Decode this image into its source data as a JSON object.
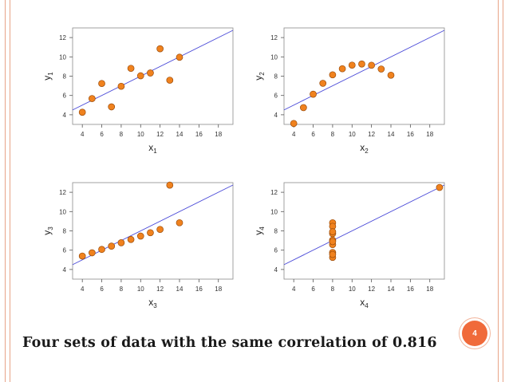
{
  "slide": {
    "caption": "Four sets of data with the same correlation of 0.816",
    "page_number": "4"
  },
  "colors": {
    "frame": "#e8a488",
    "accent": "#f06a3a",
    "point_fill": "#f0821e",
    "point_stroke": "#9a4c0c",
    "fit_line": "#4a4ad8",
    "axis": "#555555"
  },
  "chart_data": [
    {
      "type": "scatter",
      "xlabel_main": "x",
      "xlabel_sub": "1",
      "ylabel_main": "y",
      "ylabel_sub": "1",
      "xticks": [
        "4",
        "6",
        "8",
        "10",
        "12",
        "14",
        "16",
        "18"
      ],
      "yticks": [
        "4",
        "6",
        "8",
        "10",
        "12"
      ],
      "xlim": [
        3,
        19.5
      ],
      "ylim": [
        3,
        13
      ],
      "fit_line": {
        "intercept": 3,
        "slope": 0.5
      },
      "points": [
        [
          10,
          8.04
        ],
        [
          8,
          6.95
        ],
        [
          13,
          7.58
        ],
        [
          9,
          8.81
        ],
        [
          11,
          8.33
        ],
        [
          14,
          9.96
        ],
        [
          6,
          7.24
        ],
        [
          4,
          4.26
        ],
        [
          12,
          10.84
        ],
        [
          7,
          4.82
        ],
        [
          5,
          5.68
        ]
      ]
    },
    {
      "type": "scatter",
      "xlabel_main": "x",
      "xlabel_sub": "2",
      "ylabel_main": "y",
      "ylabel_sub": "2",
      "xticks": [
        "4",
        "6",
        "8",
        "10",
        "12",
        "14",
        "16",
        "18"
      ],
      "yticks": [
        "4",
        "6",
        "8",
        "10",
        "12"
      ],
      "xlim": [
        3,
        19.5
      ],
      "ylim": [
        3,
        13
      ],
      "fit_line": {
        "intercept": 3,
        "slope": 0.5
      },
      "points": [
        [
          10,
          9.14
        ],
        [
          8,
          8.14
        ],
        [
          13,
          8.74
        ],
        [
          9,
          8.77
        ],
        [
          11,
          9.26
        ],
        [
          14,
          8.1
        ],
        [
          6,
          6.13
        ],
        [
          4,
          3.1
        ],
        [
          12,
          9.13
        ],
        [
          7,
          7.26
        ],
        [
          5,
          4.74
        ]
      ]
    },
    {
      "type": "scatter",
      "xlabel_main": "x",
      "xlabel_sub": "3",
      "ylabel_main": "y",
      "ylabel_sub": "3",
      "xticks": [
        "4",
        "6",
        "8",
        "10",
        "12",
        "14",
        "16",
        "18"
      ],
      "yticks": [
        "4",
        "6",
        "8",
        "10",
        "12"
      ],
      "xlim": [
        3,
        19.5
      ],
      "ylim": [
        3,
        13
      ],
      "fit_line": {
        "intercept": 3,
        "slope": 0.5
      },
      "points": [
        [
          10,
          7.46
        ],
        [
          8,
          6.77
        ],
        [
          13,
          12.74
        ],
        [
          9,
          7.11
        ],
        [
          11,
          7.81
        ],
        [
          14,
          8.84
        ],
        [
          6,
          6.08
        ],
        [
          4,
          5.39
        ],
        [
          12,
          8.15
        ],
        [
          7,
          6.42
        ],
        [
          5,
          5.73
        ]
      ]
    },
    {
      "type": "scatter",
      "xlabel_main": "x",
      "xlabel_sub": "4",
      "ylabel_main": "y",
      "ylabel_sub": "4",
      "xticks": [
        "4",
        "6",
        "8",
        "10",
        "12",
        "14",
        "16",
        "18"
      ],
      "yticks": [
        "4",
        "6",
        "8",
        "10",
        "12"
      ],
      "xlim": [
        3,
        19.5
      ],
      "ylim": [
        3,
        13
      ],
      "fit_line": {
        "intercept": 3,
        "slope": 0.5
      },
      "points": [
        [
          8,
          6.58
        ],
        [
          8,
          5.76
        ],
        [
          8,
          7.71
        ],
        [
          8,
          8.84
        ],
        [
          8,
          8.47
        ],
        [
          8,
          7.04
        ],
        [
          8,
          5.25
        ],
        [
          19,
          12.5
        ],
        [
          8,
          5.56
        ],
        [
          8,
          7.91
        ],
        [
          8,
          6.89
        ]
      ]
    }
  ]
}
